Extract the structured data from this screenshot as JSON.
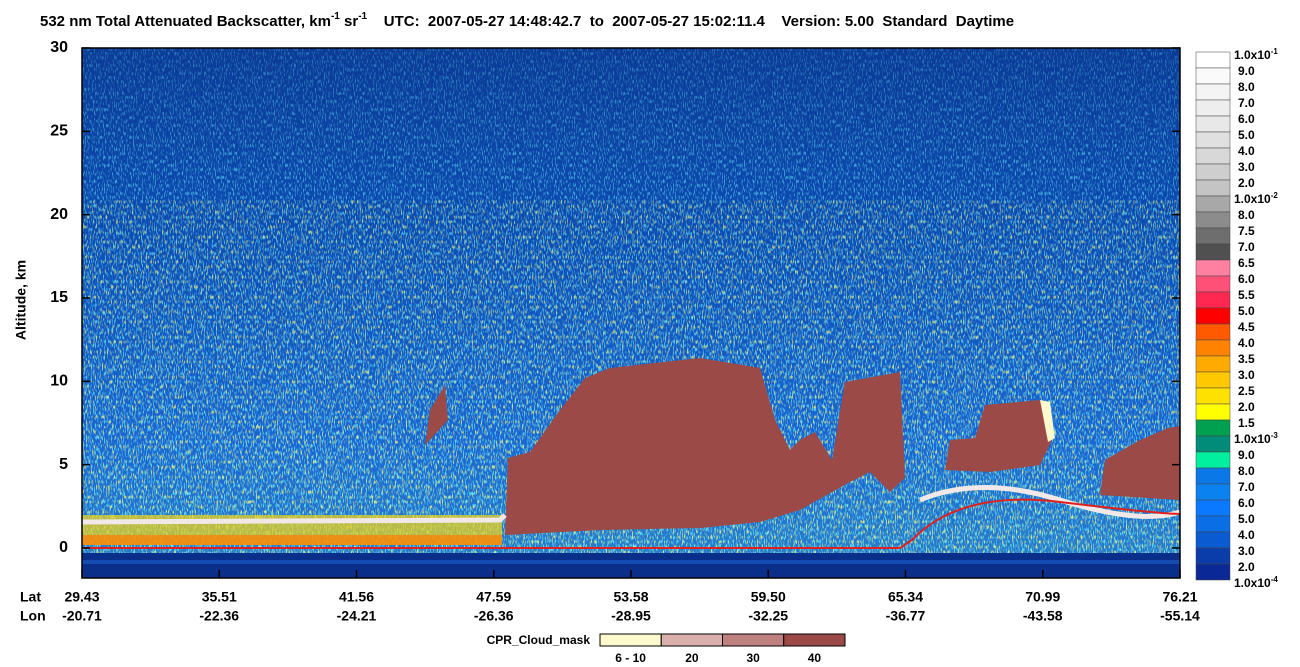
{
  "chart_data": {
    "type": "curtain",
    "title_parts": [
      {
        "text": "532 nm Total Attenuated Backscatter, km"
      },
      {
        "text": "-1",
        "sup": true
      },
      {
        "text": " sr"
      },
      {
        "text": "-1",
        "sup": true
      },
      {
        "text": "    UTC:  2007-05-27 14:48:42.7  to  2007-05-27 15:02:11.4    Version: 5.00  Standard  Daytime"
      }
    ],
    "ylabel": "Altitude, km",
    "ylim": [
      -1.8,
      30
    ],
    "yticks": [
      0,
      5,
      10,
      15,
      20,
      25,
      30
    ],
    "x_rows": [
      {
        "name": "Lat",
        "labels": [
          "29.43",
          "35.51",
          "41.56",
          "47.59",
          "53.58",
          "59.50",
          "65.34",
          "70.99",
          "76.21"
        ]
      },
      {
        "name": "Lon",
        "labels": [
          "-20.71",
          "-22.36",
          "-24.21",
          "-26.36",
          "-28.95",
          "-32.25",
          "-36.77",
          "-43.58",
          "-55.14"
        ]
      }
    ],
    "colorbar": {
      "labels": [
        {
          "base": "1.0x10",
          "exp": "-1"
        },
        "9.0",
        "8.0",
        "7.0",
        "6.0",
        "5.0",
        "4.0",
        "3.0",
        "2.0",
        {
          "base": "1.0x10",
          "exp": "-2"
        },
        "8.0",
        "7.5",
        "7.0",
        "6.5",
        "6.0",
        "5.5",
        "5.0",
        "4.5",
        "4.0",
        "3.5",
        "3.0",
        "2.5",
        "2.0",
        "1.5",
        {
          "base": "1.0x10",
          "exp": "-3"
        },
        "9.0",
        "8.0",
        "7.0",
        "6.0",
        "5.0",
        "4.0",
        "3.0",
        "2.0",
        {
          "base": "1.0x10",
          "exp": "-4"
        }
      ],
      "colors": [
        "#ffffff",
        "#fafafa",
        "#f4f4f4",
        "#eeeeee",
        "#e8e8e8",
        "#e0e0e0",
        "#d8d8d8",
        "#cecece",
        "#c4c4c4",
        "#a8a8a8",
        "#8c8c8c",
        "#6e6e6e",
        "#505050",
        "#ff80a0",
        "#ff5078",
        "#ff2850",
        "#ff0000",
        "#ff5a00",
        "#ff8200",
        "#ffaa00",
        "#ffc800",
        "#ffe100",
        "#ffff00",
        "#00a050",
        "#008c78",
        "#00f0a0",
        "#0a78e6",
        "#0a82f0",
        "#0a78ff",
        "#0a6ee6",
        "#0a5ad2",
        "#0a3caa",
        "#0a2896"
      ]
    },
    "cloud_mask": {
      "title": "CPR_Cloud_mask",
      "labels": [
        "6 - 10",
        "20",
        "30",
        "40"
      ],
      "colors": [
        "#fffacd",
        "#d9b0ae",
        "#bf8080",
        "#9b4a48"
      ]
    }
  }
}
